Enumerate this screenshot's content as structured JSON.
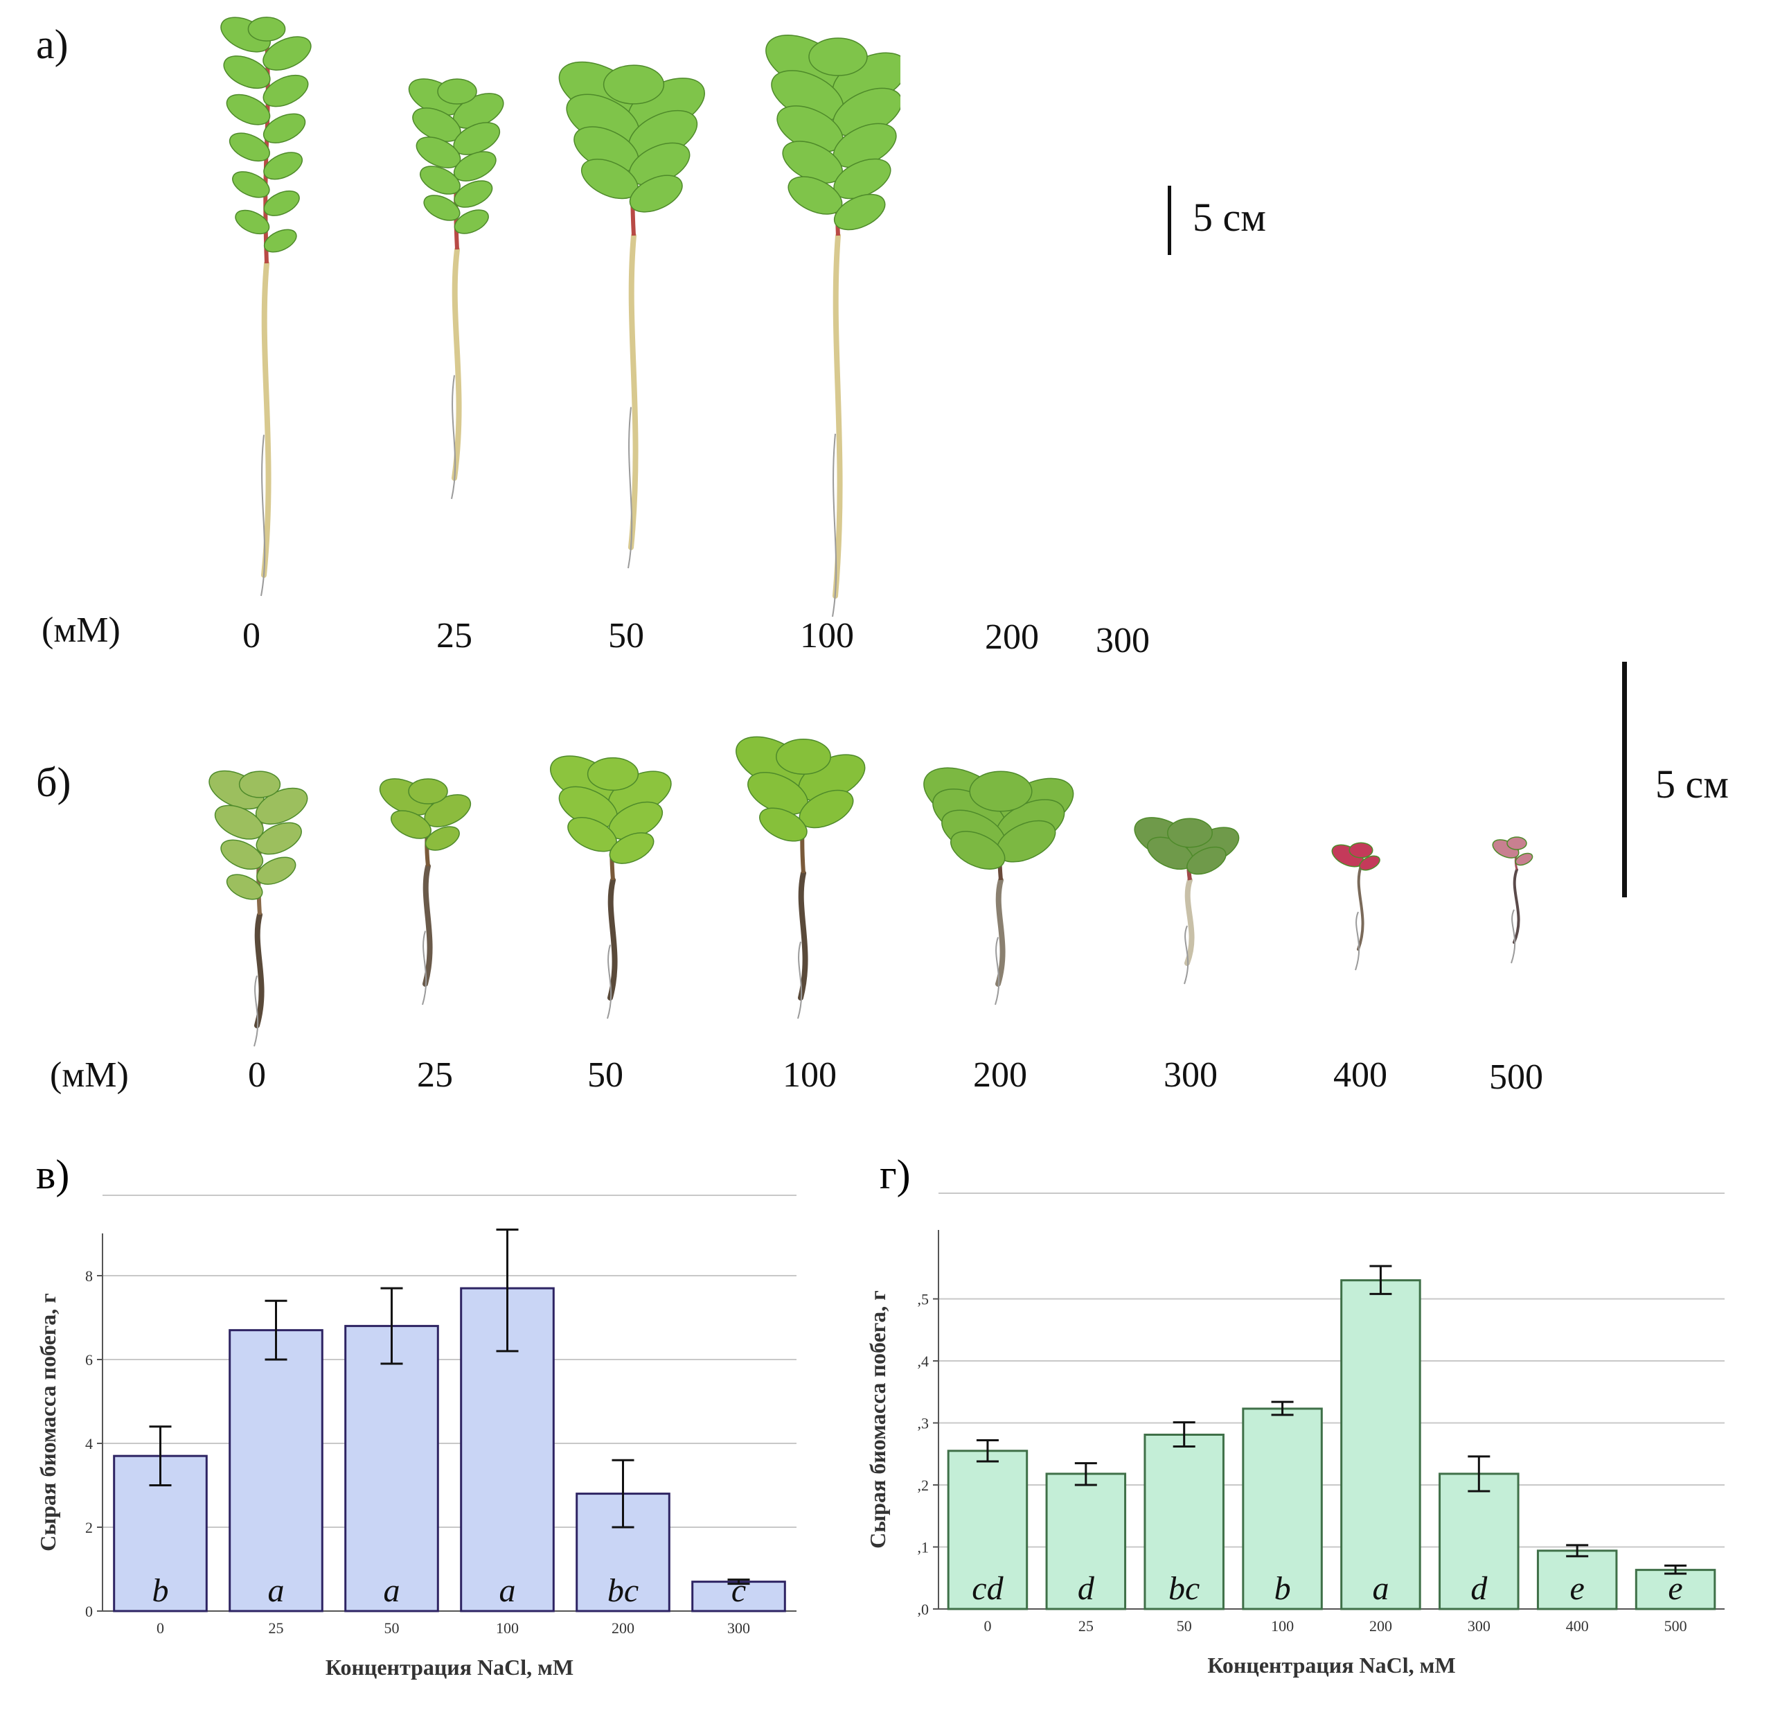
{
  "photo_a": {
    "label": "а)",
    "unit": "(мМ)",
    "concentrations": [
      "0",
      "25",
      "50",
      "100",
      "200",
      "300"
    ],
    "scale_bar": "5 см"
  },
  "photo_b": {
    "label": "б)",
    "unit": "(мМ)",
    "concentrations": [
      "0",
      "25",
      "50",
      "100",
      "200",
      "300",
      "400",
      "500"
    ],
    "scale_bar": "5 см"
  },
  "colors": {
    "bar_fill_v": "#c9d5f5",
    "bar_stroke_v": "#2e2463",
    "bar_fill_g": "#c4eed7",
    "bar_stroke_g": "#3f7048",
    "grid": "#c8c8c8",
    "leaf": "#7fc44a",
    "stem": "#b84a45",
    "root": "#d8c98f"
  },
  "chart_data": [
    {
      "panel_label": "в)",
      "type": "bar",
      "ylabel": "Сырая биомасса побега, г",
      "xlabel": "Концентрация NaCl, мМ",
      "categories": [
        "0",
        "25",
        "50",
        "100",
        "200",
        "300"
      ],
      "values": [
        3.7,
        6.7,
        6.8,
        7.7,
        2.8,
        0.7
      ],
      "err_low": [
        3.0,
        6.0,
        5.9,
        6.2,
        2.0,
        0.65
      ],
      "err_high": [
        4.4,
        7.4,
        7.7,
        9.1,
        3.6,
        0.75
      ],
      "letters": [
        "b",
        "a",
        "a",
        "a",
        "bc",
        "c"
      ],
      "ylim": [
        0,
        10
      ],
      "yticks": [
        0,
        2,
        4,
        6,
        8
      ],
      "ytick_labels": [
        "0",
        "2",
        "4",
        "6",
        "8"
      ],
      "grid": true
    },
    {
      "panel_label": "г)",
      "type": "bar",
      "ylabel": "Сырая биомасса побега, г",
      "xlabel": "Концентрация NaCl, мМ",
      "categories": [
        "0",
        "25",
        "50",
        "100",
        "200",
        "300",
        "400",
        "500"
      ],
      "values": [
        0.255,
        0.218,
        0.281,
        0.323,
        0.53,
        0.218,
        0.094,
        0.063
      ],
      "err_low": [
        0.238,
        0.2,
        0.262,
        0.313,
        0.508,
        0.19,
        0.085,
        0.057
      ],
      "err_high": [
        0.272,
        0.235,
        0.301,
        0.334,
        0.553,
        0.246,
        0.103,
        0.07
      ],
      "letters": [
        "cd",
        "d",
        "bc",
        "b",
        "a",
        "d",
        "e",
        "e"
      ],
      "ylim": [
        0,
        0.6
      ],
      "yticks": [
        0,
        0.1,
        0.2,
        0.3,
        0.4,
        0.5
      ],
      "ytick_labels": [
        ",0",
        ",1",
        ",2",
        ",3",
        ",4",
        ",5"
      ],
      "grid": true
    }
  ]
}
